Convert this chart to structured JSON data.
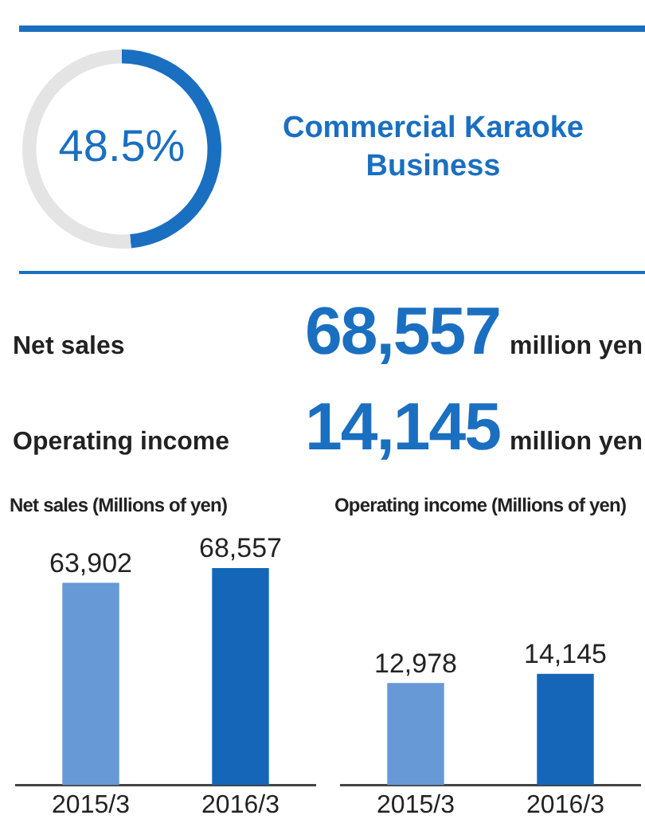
{
  "chart_data": [
    {
      "type": "donut",
      "title": "Commercial Karaoke Business",
      "categories": [
        null,
        null
      ],
      "values": [
        48.5,
        51.5
      ],
      "colors": [
        "#1a6fc0",
        "#e4e4e4"
      ],
      "value_labels": [
        "48.5%",
        null
      ]
    },
    {
      "type": "other",
      "annotations": [
        "Net sales",
        "68,557",
        "million yen",
        "Operating income",
        "14,145",
        "million yen"
      ]
    },
    {
      "type": "bar",
      "title": "Net sales (Millions of yen)",
      "categories": [
        "2015/3",
        "2016/3"
      ],
      "values": [
        63902,
        68557
      ],
      "colors": [
        "#6699d6",
        "#1566b8"
      ],
      "value_labels": [
        "63,902",
        "68,557"
      ]
    },
    {
      "type": "bar",
      "title": "Operating income (Millions of yen)",
      "categories": [
        "2015/3",
        "2016/3"
      ],
      "values": [
        12978,
        14145
      ],
      "colors": [
        "#6699d6",
        "#1566b8"
      ],
      "value_labels": [
        "12,978",
        "14,145"
      ]
    }
  ]
}
